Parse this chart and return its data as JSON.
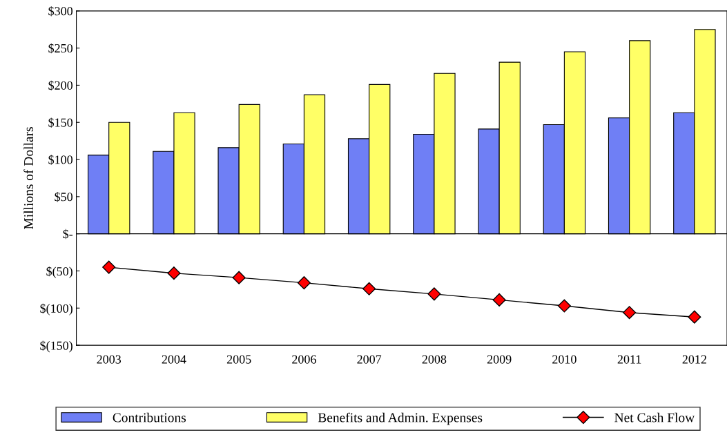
{
  "chart_data": {
    "type": "bar",
    "ylabel": "Millions of Dollars",
    "categories": [
      "2003",
      "2004",
      "2005",
      "2006",
      "2007",
      "2008",
      "2009",
      "2010",
      "2011",
      "2012"
    ],
    "series": [
      {
        "name": "Contributions",
        "color": "#6f7ff5",
        "values": [
          106,
          111,
          116,
          121,
          128,
          134,
          141,
          147,
          156,
          163
        ]
      },
      {
        "name": "Benefits and Admin. Expenses",
        "color": "#ffff66",
        "values": [
          150,
          163,
          174,
          187,
          201,
          216,
          231,
          245,
          260,
          275
        ]
      },
      {
        "name": "Net Cash Flow",
        "type": "line",
        "color": "#ff0000",
        "marker": "diamond",
        "values": [
          -45,
          -53,
          -59,
          -66,
          -74,
          -81,
          -89,
          -97,
          -106,
          -112
        ]
      }
    ],
    "ylim": [
      -150,
      300
    ],
    "yticks": [
      {
        "value": -150,
        "label": "$(150)"
      },
      {
        "value": -100,
        "label": "$(100)"
      },
      {
        "value": -50,
        "label": "$(50)"
      },
      {
        "value": 0,
        "label": "$-"
      },
      {
        "value": 50,
        "label": "$50"
      },
      {
        "value": 100,
        "label": "$100"
      },
      {
        "value": 150,
        "label": "$150"
      },
      {
        "value": 200,
        "label": "$200"
      },
      {
        "value": 250,
        "label": "$250"
      },
      {
        "value": 300,
        "label": "$300"
      }
    ],
    "ref_lines": [
      {
        "axis": "y",
        "value": 0,
        "color": "#000000"
      }
    ],
    "grid": false,
    "legend": "bottom"
  }
}
